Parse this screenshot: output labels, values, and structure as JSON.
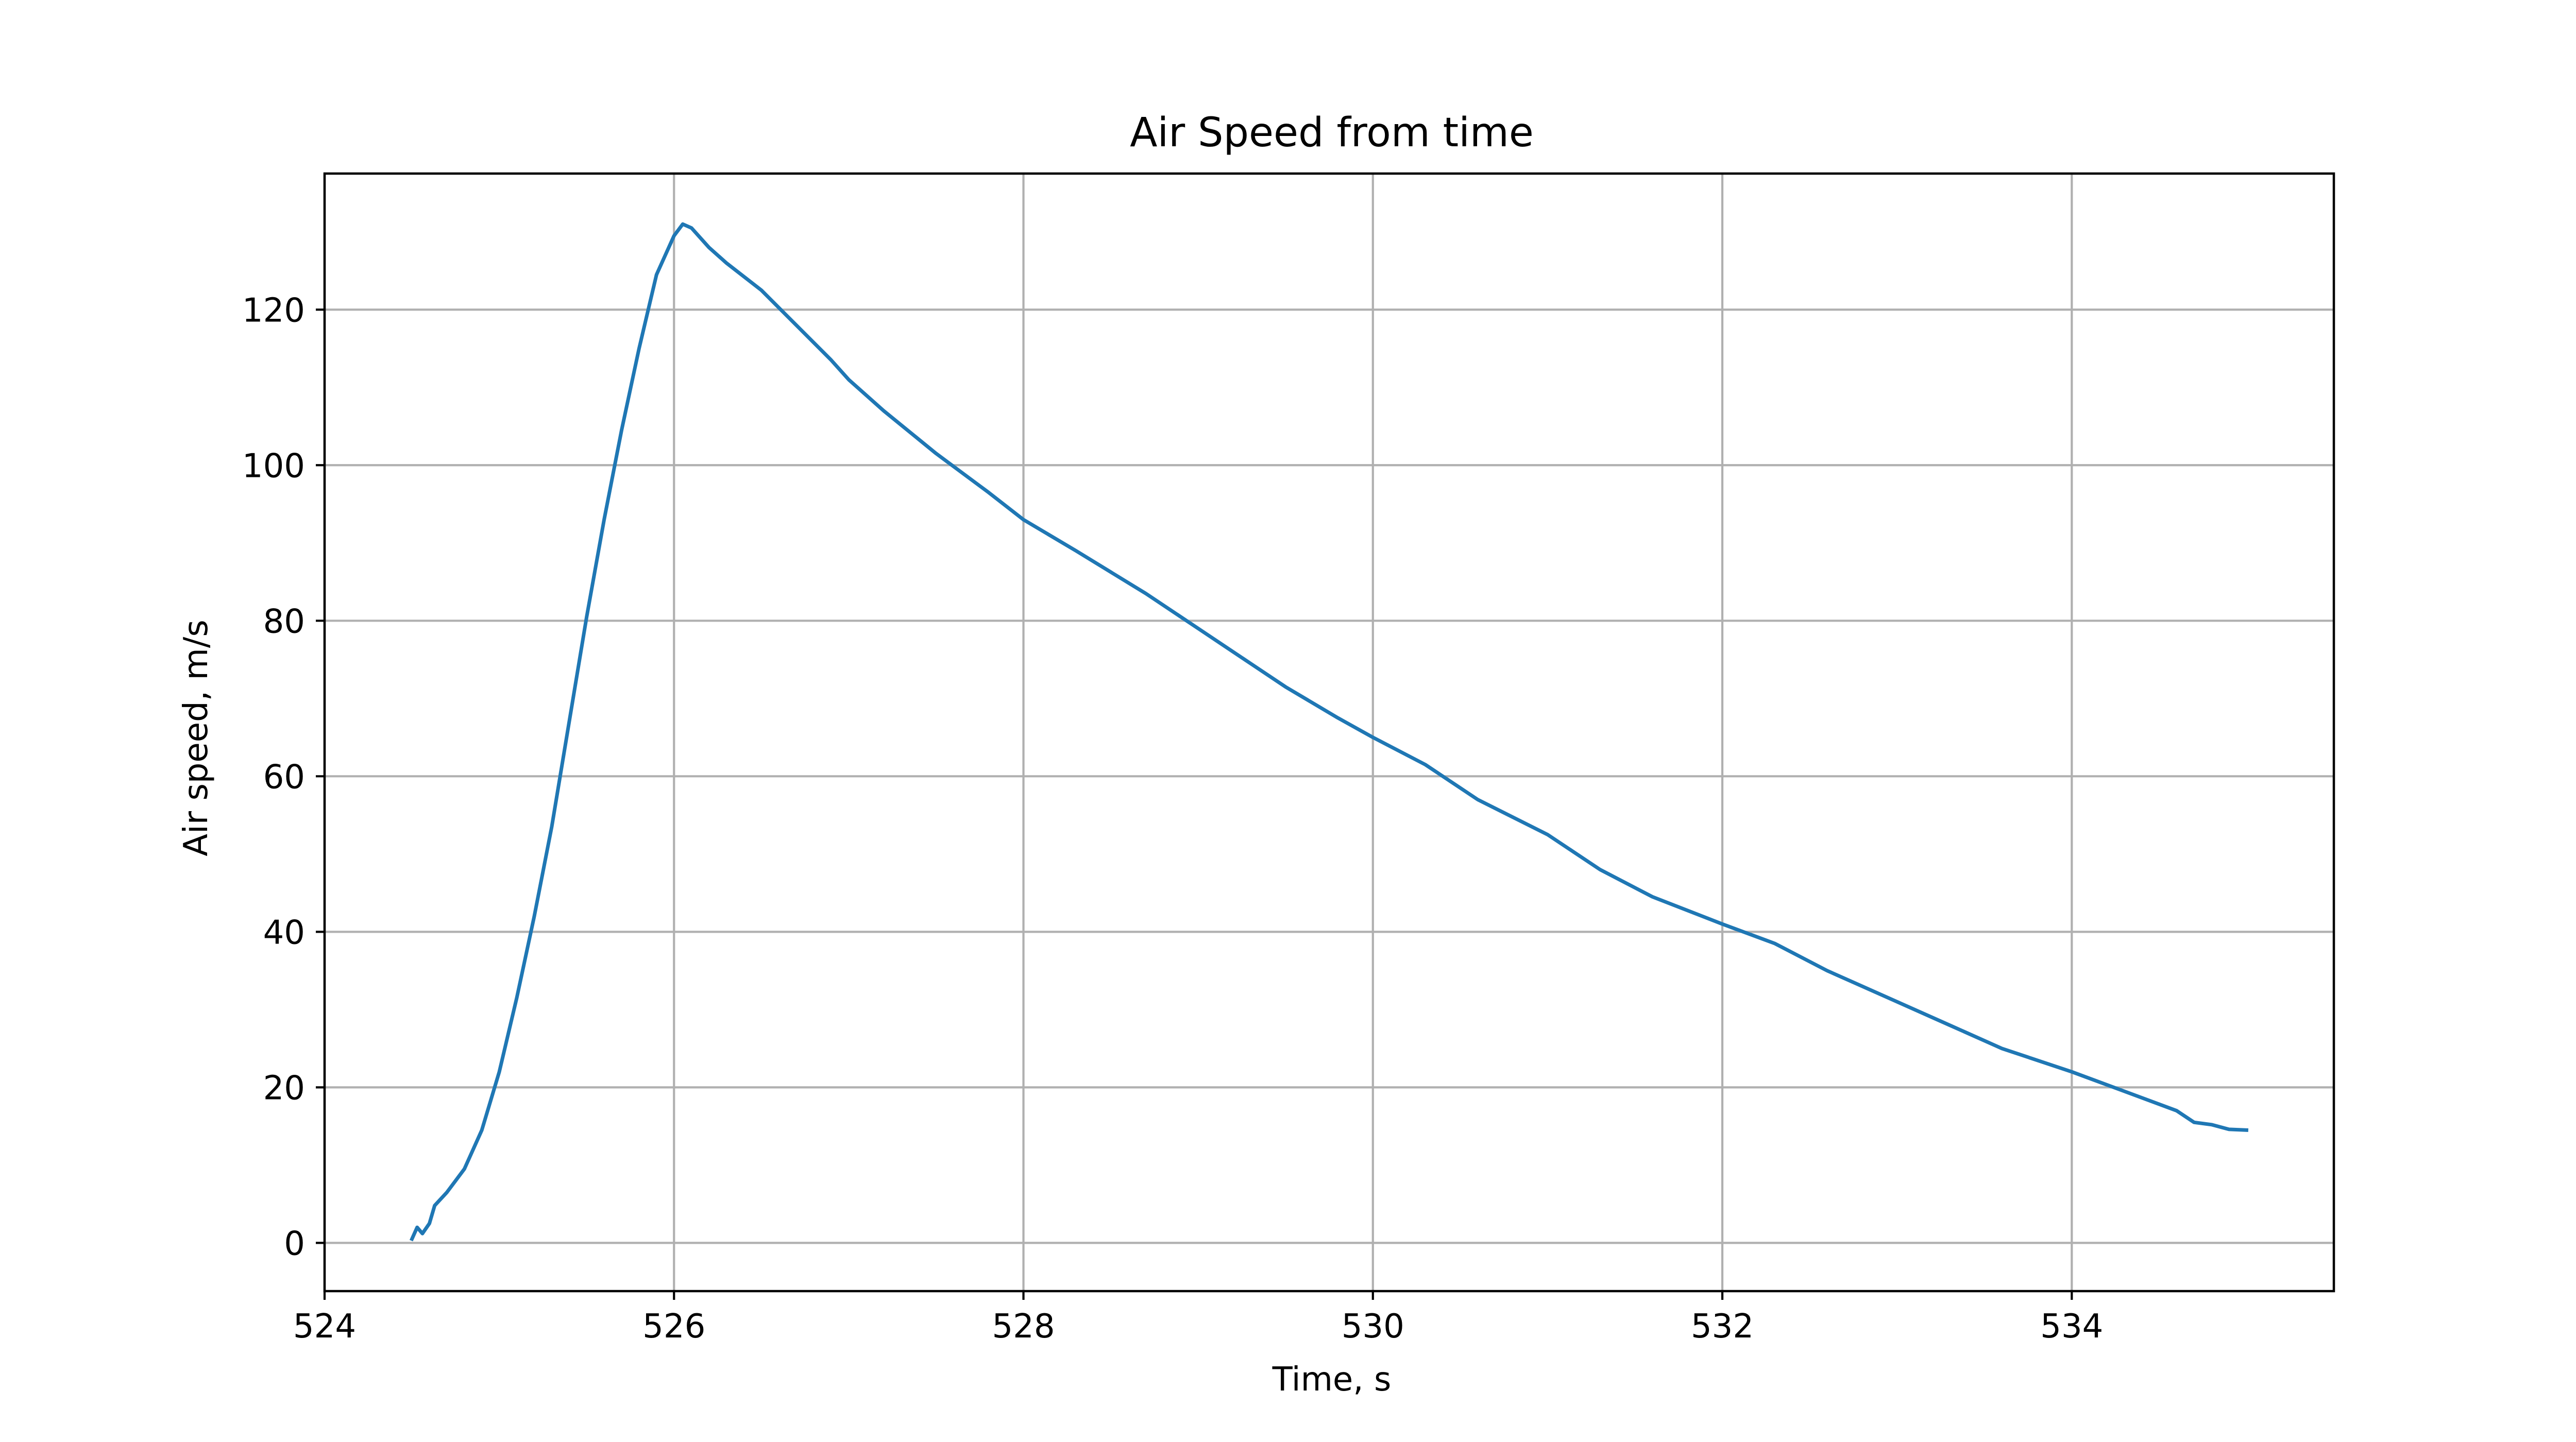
{
  "chart_data": {
    "type": "line",
    "title": "Air Speed from time",
    "xlabel": "Time, s",
    "ylabel": "Air speed, m/s",
    "xlim": [
      524.0,
      535.5
    ],
    "ylim": [
      -6.2,
      137.5
    ],
    "xticks": [
      524,
      526,
      528,
      530,
      532,
      534
    ],
    "yticks": [
      0,
      20,
      40,
      60,
      80,
      100,
      120
    ],
    "grid": true,
    "legend": "none",
    "colors": {
      "line": "#1f77b4",
      "grid": "#b0b0b0",
      "axes": "#000000",
      "background": "#ffffff"
    },
    "series": [
      {
        "x": [
          524.5,
          524.53,
          524.56,
          524.6,
          524.63,
          524.7,
          524.8,
          524.9,
          525.0,
          525.1,
          525.2,
          525.3,
          525.4,
          525.5,
          525.6,
          525.7,
          525.8,
          525.9,
          526.0,
          526.05,
          526.1,
          526.2,
          526.3,
          526.5,
          526.7,
          526.9,
          527.0,
          527.2,
          527.5,
          527.8,
          528.0,
          528.3,
          528.7,
          529.0,
          529.3,
          529.5,
          529.8,
          530.0,
          530.3,
          530.6,
          531.0,
          531.3,
          531.6,
          532.0,
          532.3,
          532.6,
          533.0,
          533.3,
          533.6,
          534.0,
          534.3,
          534.6,
          534.7,
          534.8,
          534.9,
          535.0
        ],
        "y": [
          0.5,
          2.0,
          1.2,
          2.5,
          4.8,
          6.5,
          9.5,
          14.5,
          22.0,
          31.5,
          42.0,
          53.5,
          67.0,
          80.5,
          93.0,
          104.5,
          115.0,
          124.5,
          129.5,
          131.0,
          130.5,
          128.0,
          126.0,
          122.5,
          118.0,
          113.5,
          111.0,
          107.0,
          101.5,
          96.5,
          93.0,
          89.0,
          83.5,
          79.0,
          74.5,
          71.5,
          67.5,
          65.0,
          61.5,
          57.0,
          52.5,
          48.0,
          44.5,
          41.0,
          38.5,
          35.0,
          31.0,
          28.0,
          25.0,
          22.0,
          19.5,
          17.0,
          15.5,
          15.2,
          14.6,
          14.5
        ]
      }
    ]
  }
}
